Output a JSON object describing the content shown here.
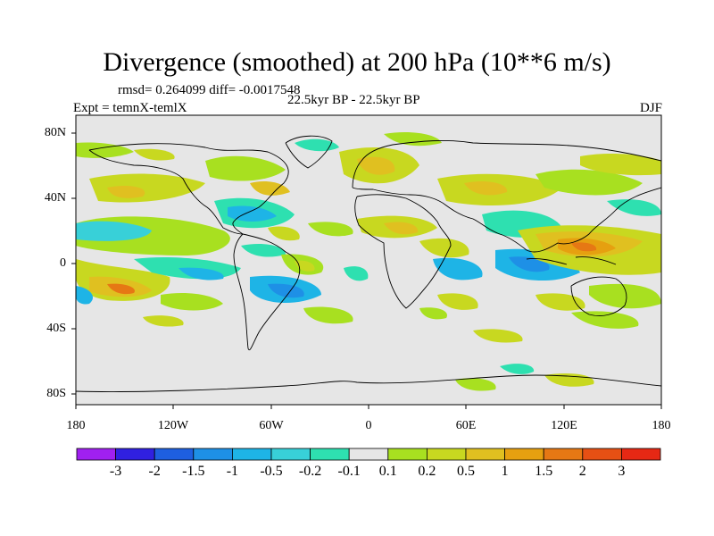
{
  "title": "Divergence (smoothed) at 200 hPa (10**6 m/s)",
  "stats": "rmsd= 0.264099 diff= -0.0017548",
  "period": "22.5kyr BP - 22.5kyr BP",
  "experiment": "Expt = temnX-temlX",
  "season": "DJF",
  "lat_labels": [
    "80N",
    "40N",
    "0",
    "40S",
    "80S"
  ],
  "lon_labels": [
    "180",
    "120W",
    "60W",
    "0",
    "60E",
    "120E",
    "180"
  ],
  "colorbar": {
    "labels": [
      "-3",
      "-2",
      "-1.5",
      "-1",
      "-0.5",
      "-0.2",
      "-0.1",
      "0.1",
      "0.2",
      "0.5",
      "1",
      "1.5",
      "2",
      "3"
    ],
    "colors": [
      "#a020f0",
      "#3020e0",
      "#1e5fe0",
      "#1e90e6",
      "#1eb4e6",
      "#38d0d8",
      "#2ee0b0",
      "#e6e6e6",
      "#a8e020",
      "#c8d820",
      "#e0c020",
      "#e6a010",
      "#e67814",
      "#e65014",
      "#e62814"
    ]
  },
  "colors": {
    "land_outline": "#000000",
    "ocean_background": "#e6e6e6"
  }
}
